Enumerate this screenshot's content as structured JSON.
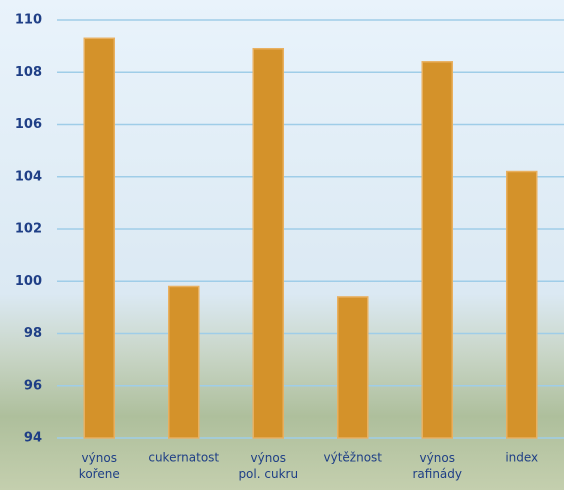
{
  "chart_data": {
    "type": "bar",
    "categories": [
      "výnos\nkořene",
      "cukernatost",
      "výnos\npol. cukru",
      "výtěžnost",
      "výnos\nrafinády",
      "index"
    ],
    "values": [
      109.3,
      99.8,
      108.9,
      99.4,
      108.4,
      104.2
    ],
    "color": "#d4922a",
    "ylim": [
      94,
      110
    ],
    "yticks": [
      94,
      96,
      98,
      100,
      102,
      104,
      106,
      108,
      110
    ],
    "grid": true
  }
}
